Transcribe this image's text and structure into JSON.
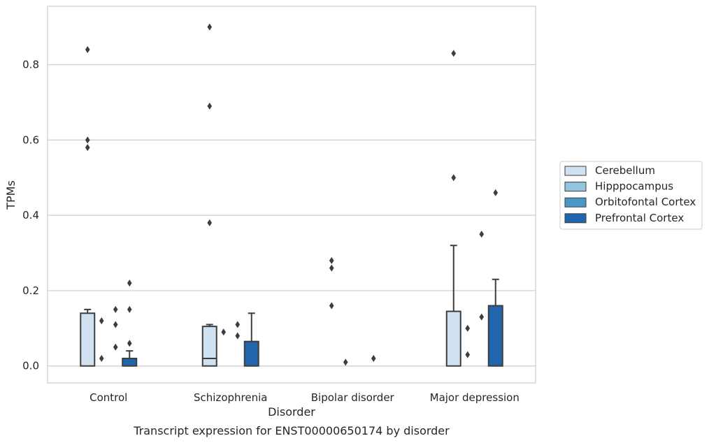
{
  "chart_data": {
    "type": "box",
    "caption": "Transcript expression for ENST00000650174 by disorder",
    "xlabel": "Disorder",
    "ylabel": "TPMs",
    "ylim": [
      -0.045,
      0.955
    ],
    "yticks": [
      0.0,
      0.2,
      0.4,
      0.6,
      0.8
    ],
    "ytick_labels": [
      "0.0",
      "0.2",
      "0.4",
      "0.6",
      "0.8"
    ],
    "grid": "horizontal",
    "legend_position": "center-right",
    "categories": [
      "Control",
      "Schizophrenia",
      "Bipolar disorder",
      "Major depression"
    ],
    "series": [
      {
        "name": "Cerebellum",
        "color": "#d0e1f2",
        "boxes": [
          {
            "q1": 0.0,
            "median": 0.0,
            "q3": 0.14,
            "whislo": 0.0,
            "whishi": 0.15,
            "fliers": [
              0.58,
              0.6,
              0.84
            ]
          },
          {
            "q1": 0.0,
            "median": 0.02,
            "q3": 0.105,
            "whislo": 0.0,
            "whishi": 0.11,
            "fliers": [
              0.38,
              0.69,
              0.9
            ]
          },
          {
            "q1": 0.0,
            "median": 0.0,
            "q3": 0.0,
            "whislo": 0.0,
            "whishi": 0.0,
            "fliers": [
              0.16,
              0.26,
              0.28
            ]
          },
          {
            "q1": 0.0,
            "median": 0.0,
            "q3": 0.145,
            "whislo": 0.0,
            "whishi": 0.32,
            "fliers": [
              0.5,
              0.83
            ]
          }
        ]
      },
      {
        "name": "Hipppocampus",
        "color": "#94c4df",
        "boxes": [
          {
            "q1": 0.0,
            "median": 0.0,
            "q3": 0.0,
            "whislo": 0.0,
            "whishi": 0.0,
            "fliers": [
              0.02,
              0.12
            ]
          },
          {
            "q1": 0.0,
            "median": 0.0,
            "q3": 0.0,
            "whislo": 0.0,
            "whishi": 0.0,
            "fliers": [
              0.09
            ]
          },
          {
            "q1": 0.0,
            "median": 0.0,
            "q3": 0.0,
            "whislo": 0.0,
            "whishi": 0.0,
            "fliers": [
              0.01
            ]
          },
          {
            "q1": 0.0,
            "median": 0.0,
            "q3": 0.0,
            "whislo": 0.0,
            "whishi": 0.0,
            "fliers": [
              0.03,
              0.1
            ]
          }
        ]
      },
      {
        "name": "Orbitofontal Cortex",
        "color": "#4a98c9",
        "boxes": [
          {
            "q1": 0.0,
            "median": 0.0,
            "q3": 0.0,
            "whislo": 0.0,
            "whishi": 0.0,
            "fliers": [
              0.05,
              0.11,
              0.15
            ]
          },
          {
            "q1": 0.0,
            "median": 0.0,
            "q3": 0.0,
            "whislo": 0.0,
            "whishi": 0.0,
            "fliers": [
              0.08,
              0.11
            ]
          },
          {
            "q1": 0.0,
            "median": 0.0,
            "q3": 0.0,
            "whislo": 0.0,
            "whishi": 0.0,
            "fliers": []
          },
          {
            "q1": 0.0,
            "median": 0.0,
            "q3": 0.0,
            "whislo": 0.0,
            "whishi": 0.0,
            "fliers": [
              0.13,
              0.35
            ]
          }
        ]
      },
      {
        "name": "Prefrontal Cortex",
        "color": "#2166ac",
        "boxes": [
          {
            "q1": 0.0,
            "median": 0.0,
            "q3": 0.02,
            "whislo": 0.0,
            "whishi": 0.04,
            "fliers": [
              0.06,
              0.15,
              0.22
            ]
          },
          {
            "q1": 0.0,
            "median": 0.0,
            "q3": 0.065,
            "whislo": 0.0,
            "whishi": 0.14,
            "fliers": []
          },
          {
            "q1": 0.0,
            "median": 0.0,
            "q3": 0.0,
            "whislo": 0.0,
            "whishi": 0.0,
            "fliers": [
              0.02
            ]
          },
          {
            "q1": 0.0,
            "median": 0.0,
            "q3": 0.16,
            "whislo": 0.0,
            "whishi": 0.23,
            "fliers": [
              0.46
            ]
          }
        ]
      }
    ]
  }
}
